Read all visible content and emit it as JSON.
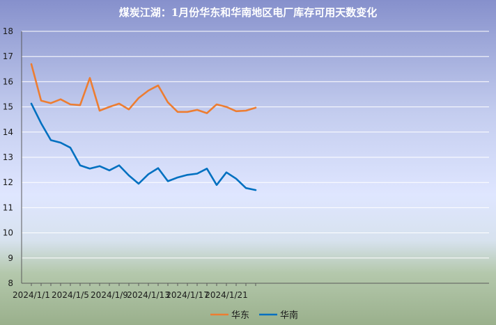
{
  "chart_data": {
    "type": "line",
    "title": "煤炭江湖：1月份华东和华南地区电厂库存可用天数变化",
    "xlabel": "",
    "ylabel": "",
    "ylim": [
      8,
      18
    ],
    "yticks": [
      8,
      9,
      10,
      11,
      12,
      13,
      14,
      15,
      16,
      17,
      18
    ],
    "x": [
      "2024/1/1",
      "2024/1/2",
      "2024/1/3",
      "2024/1/4",
      "2024/1/5",
      "2024/1/6",
      "2024/1/7",
      "2024/1/8",
      "2024/1/9",
      "2024/1/10",
      "2024/1/11",
      "2024/1/12",
      "2024/1/13",
      "2024/1/14",
      "2024/1/15",
      "2024/1/16",
      "2024/1/17",
      "2024/1/18",
      "2024/1/19",
      "2024/1/20",
      "2024/1/21",
      "2024/1/22",
      "2024/1/23",
      "2024/1/24"
    ],
    "xtick_labels": [
      "2024/1/1",
      "2024/1/5",
      "2024/1/9",
      "2024/1/13",
      "2024/1/17",
      "2024/1/21"
    ],
    "series": [
      {
        "name": "华东",
        "color": "#ED7D31",
        "values": [
          16.7,
          15.25,
          15.15,
          15.3,
          15.1,
          15.07,
          16.15,
          14.85,
          15.0,
          15.13,
          14.9,
          15.35,
          15.65,
          15.85,
          15.18,
          14.8,
          14.8,
          14.88,
          14.75,
          15.1,
          15.0,
          14.83,
          14.85,
          14.97
        ]
      },
      {
        "name": "华南",
        "color": "#0070C0",
        "values": [
          15.13,
          14.35,
          13.68,
          13.58,
          13.38,
          12.68,
          12.55,
          12.65,
          12.48,
          12.68,
          12.28,
          11.95,
          12.33,
          12.57,
          12.05,
          12.2,
          12.3,
          12.35,
          12.55,
          11.9,
          12.4,
          12.15,
          11.78,
          11.7
        ]
      }
    ],
    "legend_position": "bottom",
    "grid": true
  }
}
